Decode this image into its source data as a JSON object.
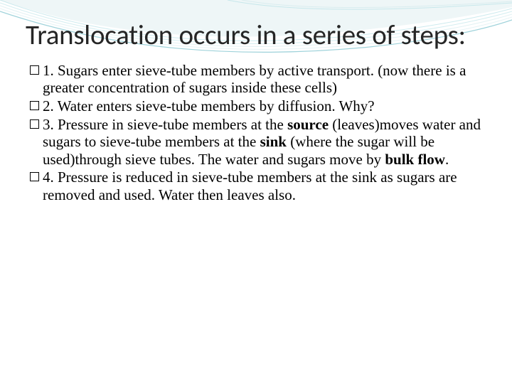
{
  "title": "Translocation occurs in a series of steps:",
  "title_fontsize": 39,
  "title_color": "#262626",
  "body_fontsize": 21,
  "body_color": "#000000",
  "background_color": "#ffffff",
  "decoration": {
    "arc_colors": [
      "#e0eef0",
      "#7fcad4",
      "#a8d8de",
      "#3ea6b5"
    ],
    "arc_stroke_opacity": 0.35
  },
  "bullets": [
    {
      "segments": [
        {
          "text": "1. Sugars enter sieve-tube members by active transport. (now there is a greater concentration of sugars inside these cells)",
          "bold": false
        }
      ]
    },
    {
      "segments": [
        {
          "text": "2. Water enters sieve-tube members by diffusion. Why?",
          "bold": false
        }
      ]
    },
    {
      "segments": [
        {
          "text": "3. Pressure in sieve-tube members at the ",
          "bold": false
        },
        {
          "text": "source",
          "bold": true
        },
        {
          "text": " (leaves)moves water and sugars to sieve-tube members at the ",
          "bold": false
        },
        {
          "text": "sink",
          "bold": true
        },
        {
          "text": " (where the sugar will be used)through sieve tubes.  The water and sugars move by ",
          "bold": false
        },
        {
          "text": "bulk flow",
          "bold": true
        },
        {
          "text": ".",
          "bold": false
        }
      ]
    },
    {
      "segments": [
        {
          "text": "4. Pressure is reduced in sieve-tube members at the sink as sugars are removed and used. Water then leaves also.",
          "bold": false
        }
      ]
    }
  ]
}
